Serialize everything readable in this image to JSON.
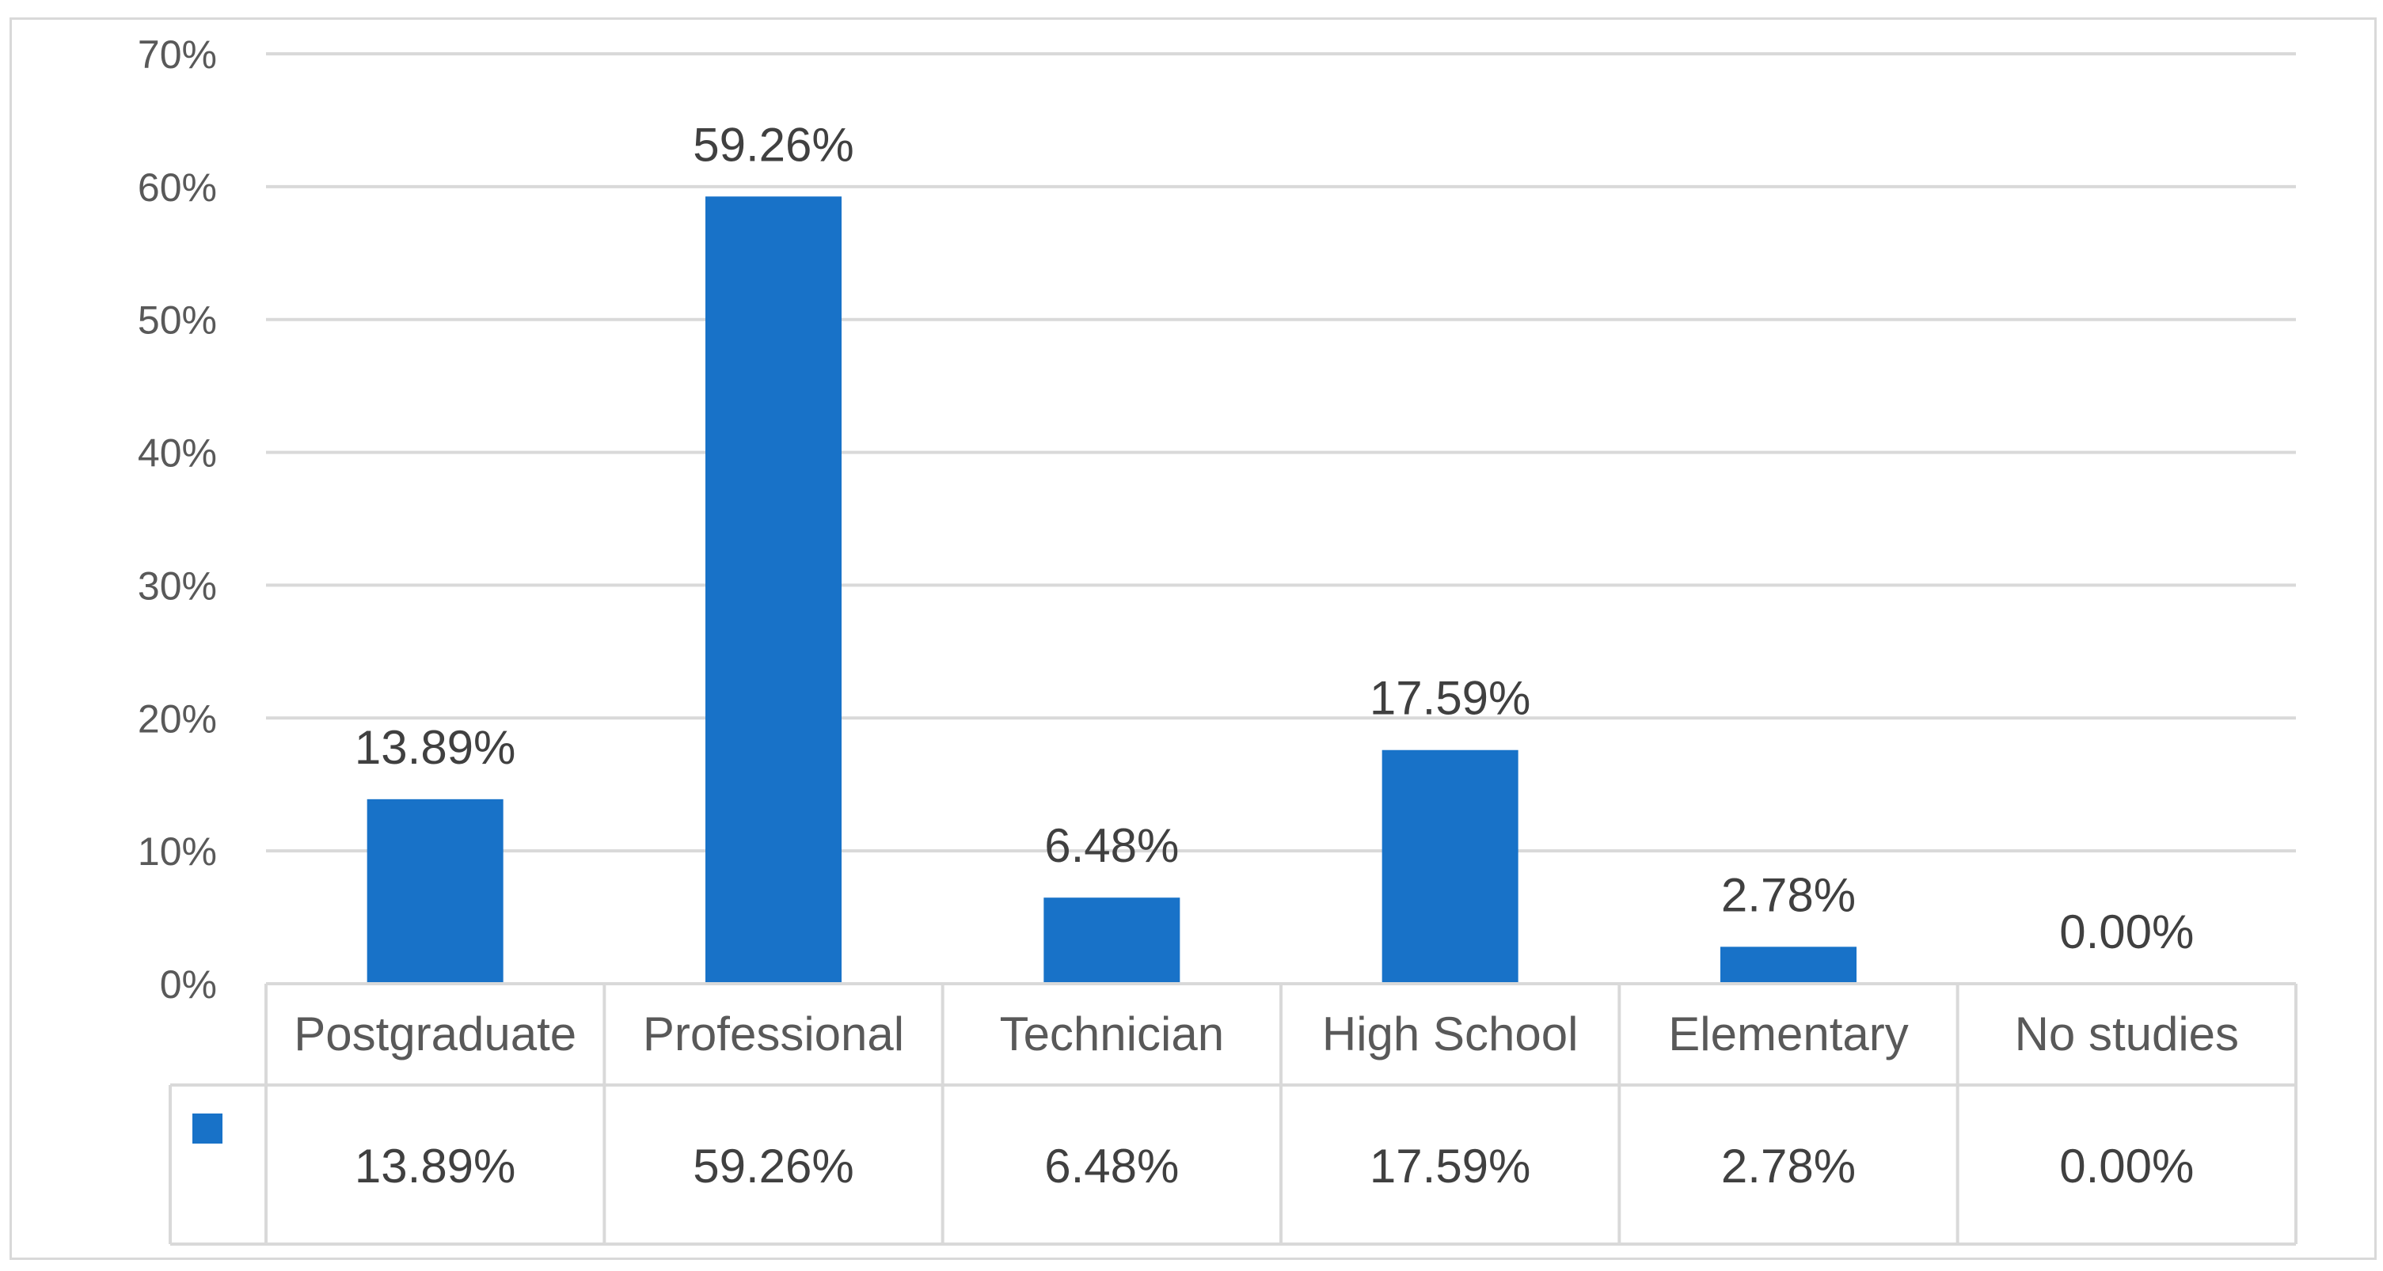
{
  "chart_data": {
    "type": "bar",
    "categories": [
      "Postgraduate",
      "Professional",
      "Technician",
      "High School",
      "Elementary",
      "No studies"
    ],
    "values": [
      13.89,
      59.26,
      6.48,
      17.59,
      2.78,
      0.0
    ],
    "data_labels": [
      "13.89%",
      "59.26%",
      "6.48%",
      "17.59%",
      "2.78%",
      "0.00%"
    ],
    "y_ticks": [
      "0%",
      "10%",
      "20%",
      "30%",
      "40%",
      "50%",
      "60%",
      "70%"
    ],
    "ylim": [
      0,
      70
    ],
    "grid": true,
    "data_table": true,
    "colors": {
      "bar": "#1872C8",
      "grid": "#d9d9d9",
      "text": "#595959"
    }
  }
}
